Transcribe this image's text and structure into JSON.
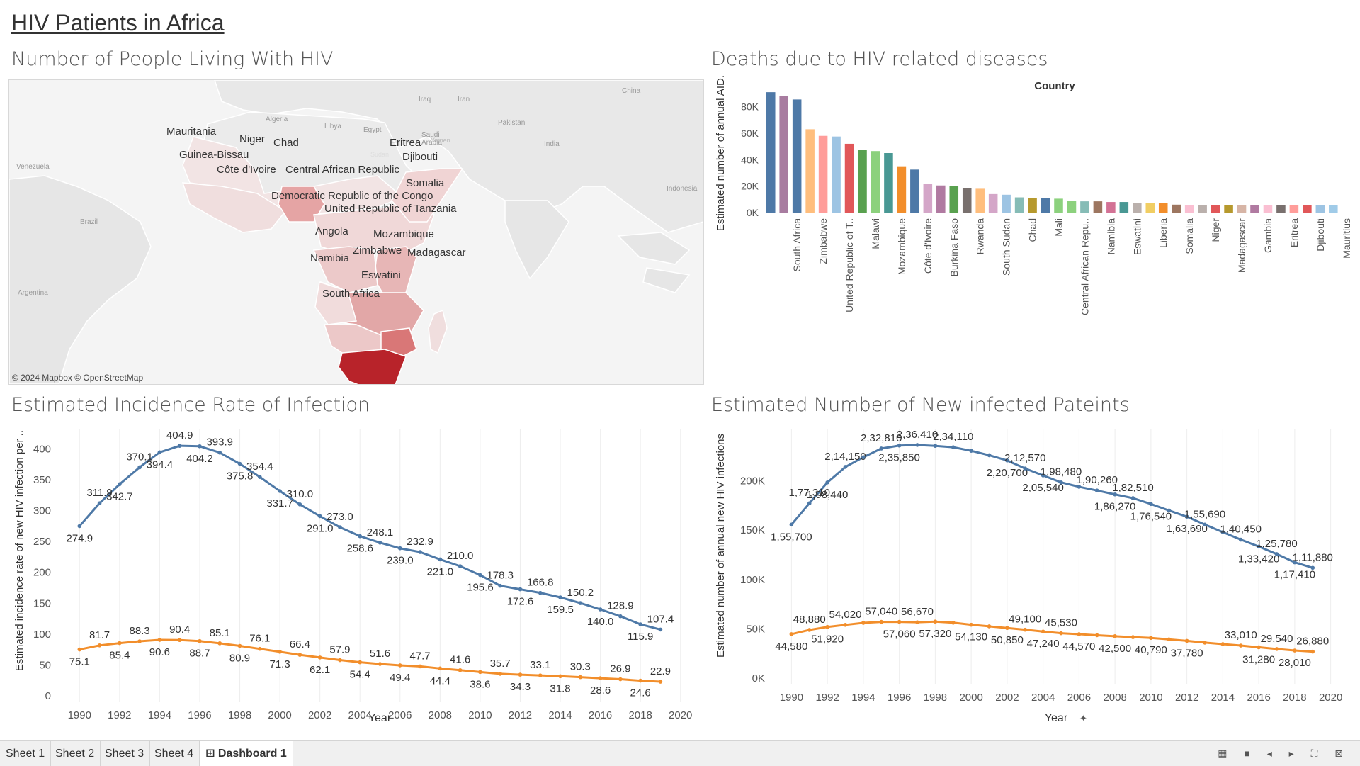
{
  "dashboard": {
    "title": "HIV Patients in Africa",
    "titles": {
      "map": "Number of People Living With HIV",
      "deaths": "Deaths due to HIV related diseases",
      "incidence": "Estimated Incidence Rate of Infection",
      "newinf": "Estimated Number of New infected Pateints"
    }
  },
  "map": {
    "attribution": "© 2024 Mapbox © OpenStreetMap",
    "country_labels": [
      "Mauritania",
      "Niger",
      "Chad",
      "Eritrea",
      "Djibouti",
      "Guinea-Bissau",
      "Côte d'Ivoire",
      "Central African Republic",
      "Somalia",
      "Democratic Republic of the Congo",
      "United Republic of Tanzania",
      "Angola",
      "Mozambique",
      "Zimbabwe",
      "Madagascar",
      "Namibia",
      "Eswatini",
      "South Africa"
    ],
    "basemap_labels": [
      "Algeria",
      "Libya",
      "Egypt",
      "Iraq",
      "Iran",
      "Saudi Arabia",
      "Pakistan",
      "China",
      "India",
      "Yemen",
      "Venezuela",
      "Brazil",
      "Indonesia",
      "Argentina",
      "Sudan"
    ],
    "colors": {
      "water": "#f4f4f4",
      "land": "#e6e6e6",
      "lowest": "#f2e4e4",
      "low": "#ecc9c9",
      "mid": "#e09a9a",
      "high": "#d97777",
      "max": "#b8232a"
    }
  },
  "deaths_chart": {
    "type": "bar",
    "legend_title": "Country",
    "ylabel": "Estimated number of annual AID..",
    "yticks": [
      "80K",
      "60K",
      "40K",
      "20K",
      "0K"
    ],
    "ylim": [
      0,
      90000
    ],
    "categories": [
      "South Africa",
      "Zimbabwe",
      "United Republic of T..",
      "Malawi",
      "Mozambique",
      "Côte d'Ivoire",
      "Burkina Faso",
      "Rwanda",
      "South Sudan",
      "Chad",
      "Mali",
      "Central African Repu..",
      "Namibia",
      "Eswatini",
      "Liberia",
      "Somalia",
      "Niger",
      "Madagascar",
      "Gambia",
      "Eritrea",
      "Djibouti",
      "Mauritius"
    ],
    "bars": [
      {
        "value": 91000,
        "color": "#4e79a7"
      },
      {
        "value": 88000,
        "color": "#a87ca0"
      },
      {
        "value": 85500,
        "color": "#4e79a7",
        "label": "South Africa"
      },
      {
        "value": 63000,
        "color": "#ffbe7d"
      },
      {
        "value": 58000,
        "color": "#ff9d9a",
        "label": "Zimbabwe"
      },
      {
        "value": 57500,
        "color": "#9dc4e3"
      },
      {
        "value": 52000,
        "color": "#e15759",
        "label": "United Republic of T.."
      },
      {
        "value": 47500,
        "color": "#59a14f"
      },
      {
        "value": 46500,
        "color": "#8cd17d",
        "label": "Malawi"
      },
      {
        "value": 45000,
        "color": "#499894"
      },
      {
        "value": 35000,
        "color": "#f28e2b",
        "label": "Mozambique"
      },
      {
        "value": 32500,
        "color": "#4e79a7"
      },
      {
        "value": 21500,
        "color": "#d4a6c8",
        "label": "Côte d'Ivoire"
      },
      {
        "value": 20500,
        "color": "#b07aa1"
      },
      {
        "value": 20000,
        "color": "#59a14f",
        "label": "Burkina Faso"
      },
      {
        "value": 18500,
        "color": "#79706e"
      },
      {
        "value": 18000,
        "color": "#ffbe7d",
        "label": "Rwanda"
      },
      {
        "value": 14000,
        "color": "#d4a6c8"
      },
      {
        "value": 13500,
        "color": "#9dc4e3",
        "label": "South Sudan"
      },
      {
        "value": 11500,
        "color": "#86bcb6"
      },
      {
        "value": 11000,
        "color": "#b6992d",
        "label": "Chad"
      },
      {
        "value": 11000,
        "color": "#4e79a7"
      },
      {
        "value": 10500,
        "color": "#8cd17d",
        "label": "Mali"
      },
      {
        "value": 9000,
        "color": "#8cd17d"
      },
      {
        "value": 8500,
        "color": "#86bcb6",
        "label": "Central African Repu.."
      },
      {
        "value": 8500,
        "color": "#9d7660"
      },
      {
        "value": 8000,
        "color": "#d37295",
        "label": "Namibia"
      },
      {
        "value": 8000,
        "color": "#499894"
      },
      {
        "value": 7500,
        "color": "#bab0ac",
        "label": "Eswatini"
      },
      {
        "value": 7000,
        "color": "#f1ce63"
      },
      {
        "value": 7000,
        "color": "#f28e2b",
        "label": "Liberia"
      },
      {
        "value": 6000,
        "color": "#9d7660"
      },
      {
        "value": 5500,
        "color": "#fabfd2",
        "label": "Somalia"
      },
      {
        "value": 5500,
        "color": "#bab0ac"
      },
      {
        "value": 5500,
        "color": "#e15759",
        "label": "Niger"
      },
      {
        "value": 5500,
        "color": "#b6992d"
      },
      {
        "value": 5500,
        "color": "#d7b5a6",
        "label": "Madagascar"
      },
      {
        "value": 5500,
        "color": "#b07aa1"
      },
      {
        "value": 5500,
        "color": "#fabfd2",
        "label": "Gambia"
      },
      {
        "value": 5500,
        "color": "#79706e"
      },
      {
        "value": 5500,
        "color": "#ff9d9a",
        "label": "Eritrea"
      },
      {
        "value": 5500,
        "color": "#e15759"
      },
      {
        "value": 5500,
        "color": "#9dc4e3",
        "label": "Djibouti"
      },
      {
        "value": 5500,
        "color": "#a0cbe8"
      },
      {
        "value": 5500,
        "color": "#ffffff",
        "label": "Mauritius"
      }
    ]
  },
  "incidence_chart": {
    "type": "line",
    "xlabel": "Year",
    "ylabel": "Estimated incidence rate of new HIV infection per ..",
    "xticks": [
      "1990",
      "1992",
      "1994",
      "1996",
      "1998",
      "2000",
      "2002",
      "2004",
      "2006",
      "2008",
      "2010",
      "2012",
      "2014",
      "2016",
      "2018",
      "2020"
    ],
    "yticks": [
      "400",
      "350",
      "300",
      "250",
      "200",
      "150",
      "100",
      "50",
      "0"
    ],
    "xlim": [
      1989,
      2021
    ],
    "ylim": [
      0,
      420
    ],
    "series": [
      {
        "color": "#4e79a7",
        "points": [
          [
            1990,
            274.9
          ],
          [
            1991,
            311.9
          ],
          [
            1992,
            342.7
          ],
          [
            1993,
            370.1
          ],
          [
            1994,
            394.4
          ],
          [
            1995,
            404.9
          ],
          [
            1996,
            404.2
          ],
          [
            1997,
            393.9
          ],
          [
            1998,
            375.8
          ],
          [
            1999,
            354.4
          ],
          [
            2000,
            331.7
          ],
          [
            2001,
            310.0
          ],
          [
            2002,
            291.0
          ],
          [
            2003,
            273.0
          ],
          [
            2004,
            258.6
          ],
          [
            2005,
            248.1
          ],
          [
            2006,
            239.0
          ],
          [
            2007,
            232.9
          ],
          [
            2008,
            221.0
          ],
          [
            2009,
            210.0
          ],
          [
            2010,
            195.6
          ],
          [
            2011,
            178.3
          ],
          [
            2012,
            172.6
          ],
          [
            2013,
            166.8
          ],
          [
            2014,
            159.5
          ],
          [
            2015,
            150.2
          ],
          [
            2016,
            140.0
          ],
          [
            2017,
            128.9
          ],
          [
            2018,
            115.9
          ],
          [
            2019,
            107.4
          ]
        ],
        "labels": [
          "274.9",
          "311.9",
          "342.7",
          "370.1",
          "394.4",
          "404.9",
          "404.2",
          "393.9",
          "375.8",
          "354.4",
          "331.7",
          "310.0",
          "291.0",
          "273.0",
          "258.6",
          "248.1",
          "239.0",
          "232.9",
          "221.0",
          "210.0",
          "195.6",
          "178.3",
          "172.6",
          "166.8",
          "159.5",
          "150.2",
          "140.0",
          "128.9",
          "115.9",
          "107.4"
        ]
      },
      {
        "color": "#f28e2b",
        "points": [
          [
            1990,
            75.1
          ],
          [
            1991,
            81.7
          ],
          [
            1992,
            85.4
          ],
          [
            1993,
            88.3
          ],
          [
            1994,
            90.6
          ],
          [
            1995,
            90.4
          ],
          [
            1996,
            88.7
          ],
          [
            1997,
            85.1
          ],
          [
            1998,
            80.9
          ],
          [
            1999,
            76.1
          ],
          [
            2000,
            71.3
          ],
          [
            2001,
            66.4
          ],
          [
            2002,
            62.1
          ],
          [
            2003,
            57.9
          ],
          [
            2004,
            54.4
          ],
          [
            2005,
            51.6
          ],
          [
            2006,
            49.4
          ],
          [
            2007,
            47.7
          ],
          [
            2008,
            44.4
          ],
          [
            2009,
            41.6
          ],
          [
            2010,
            38.6
          ],
          [
            2011,
            35.7
          ],
          [
            2012,
            34.3
          ],
          [
            2013,
            33.1
          ],
          [
            2014,
            31.8
          ],
          [
            2015,
            30.3
          ],
          [
            2016,
            28.6
          ],
          [
            2017,
            26.9
          ],
          [
            2018,
            24.6
          ],
          [
            2019,
            22.9
          ]
        ],
        "labels": [
          "75.1",
          "81.7",
          "85.4",
          "88.3",
          "90.6",
          "90.4",
          "88.7",
          "85.1",
          "80.9",
          "76.1",
          "71.3",
          "66.4",
          "62.1",
          "57.9",
          "54.4",
          "51.6",
          "49.4",
          "47.7",
          "44.4",
          "41.6",
          "38.6",
          "35.7",
          "34.3",
          "33.1",
          "31.8",
          "30.3",
          "28.6",
          "26.9",
          "24.6",
          "22.9"
        ]
      }
    ]
  },
  "newinf_chart": {
    "type": "line",
    "xlabel": "Year",
    "ylabel": "Estimated number of annual new HIV infections",
    "xticks": [
      "1990",
      "1992",
      "1994",
      "1996",
      "1998",
      "2000",
      "2002",
      "2004",
      "2006",
      "2008",
      "2010",
      "2012",
      "2014",
      "2016",
      "2018",
      "2020"
    ],
    "yticks": [
      "200K",
      "150K",
      "100K",
      "50K",
      "0K"
    ],
    "xlim": [
      1989,
      2021
    ],
    "ylim": [
      0,
      245000
    ],
    "series": [
      {
        "color": "#4e79a7",
        "points": [
          [
            1990,
            155700
          ],
          [
            1991,
            177310
          ],
          [
            1992,
            198440
          ],
          [
            1993,
            214150
          ],
          [
            1994,
            224000
          ],
          [
            1995,
            232810
          ],
          [
            1996,
            235850
          ],
          [
            1997,
            236410
          ],
          [
            1998,
            235500
          ],
          [
            1999,
            234110
          ],
          [
            2000,
            230500
          ],
          [
            2001,
            226000
          ],
          [
            2002,
            220700
          ],
          [
            2003,
            212570
          ],
          [
            2004,
            205540
          ],
          [
            2005,
            198480
          ],
          [
            2006,
            194000
          ],
          [
            2007,
            190260
          ],
          [
            2008,
            186270
          ],
          [
            2009,
            182510
          ],
          [
            2010,
            176540
          ],
          [
            2011,
            170000
          ],
          [
            2012,
            163690
          ],
          [
            2013,
            155690
          ],
          [
            2014,
            148000
          ],
          [
            2015,
            140450
          ],
          [
            2016,
            133420
          ],
          [
            2017,
            125780
          ],
          [
            2018,
            117410
          ],
          [
            2019,
            111880
          ]
        ],
        "labels": [
          "1,55,700",
          "1,77,310",
          "1,98,440",
          "2,14,150",
          "",
          "2,32,810",
          "2,35,850",
          "2,36,410",
          "",
          "2,34,110",
          "",
          "",
          "2,20,700",
          "2,12,570",
          "2,05,540",
          "1,98,480",
          "",
          "1,90,260",
          "1,86,270",
          "1,82,510",
          "1,76,540",
          "",
          "1,63,690",
          "1,55,690",
          "",
          "1,40,450",
          "1,33,420",
          "1,25,780",
          "1,17,410",
          "1,11,880"
        ]
      },
      {
        "color": "#f28e2b",
        "points": [
          [
            1990,
            44580
          ],
          [
            1991,
            48880
          ],
          [
            1992,
            51920
          ],
          [
            1993,
            54020
          ],
          [
            1994,
            56000
          ],
          [
            1995,
            57040
          ],
          [
            1996,
            57060
          ],
          [
            1997,
            56670
          ],
          [
            1998,
            57320
          ],
          [
            1999,
            56200
          ],
          [
            2000,
            54130
          ],
          [
            2001,
            52500
          ],
          [
            2002,
            50850
          ],
          [
            2003,
            49100
          ],
          [
            2004,
            47240
          ],
          [
            2005,
            45530
          ],
          [
            2006,
            44570
          ],
          [
            2007,
            43500
          ],
          [
            2008,
            42500
          ],
          [
            2009,
            41600
          ],
          [
            2010,
            40790
          ],
          [
            2011,
            39300
          ],
          [
            2012,
            37780
          ],
          [
            2013,
            36000
          ],
          [
            2014,
            34500
          ],
          [
            2015,
            33010
          ],
          [
            2016,
            31280
          ],
          [
            2017,
            29540
          ],
          [
            2018,
            28010
          ],
          [
            2019,
            26880
          ]
        ],
        "labels": [
          "44,580",
          "48,880",
          "51,920",
          "54,020",
          "",
          "57,040",
          "57,060",
          "56,670",
          "57,320",
          "",
          "54,130",
          "",
          "50,850",
          "49,100",
          "47,240",
          "45,530",
          "44,570",
          "",
          "42,500",
          "",
          "40,790",
          "",
          "37,780",
          "",
          "",
          "33,010",
          "31,280",
          "29,540",
          "28,010",
          "26,880"
        ]
      }
    ]
  },
  "tabs": [
    "Sheet 1",
    "Sheet 2",
    "Sheet 3",
    "Sheet 4",
    "Dashboard 1"
  ],
  "tab_icon": "⊞",
  "nav_icons": "▦ ■ ◂ ▸ ⛶ ⊠"
}
